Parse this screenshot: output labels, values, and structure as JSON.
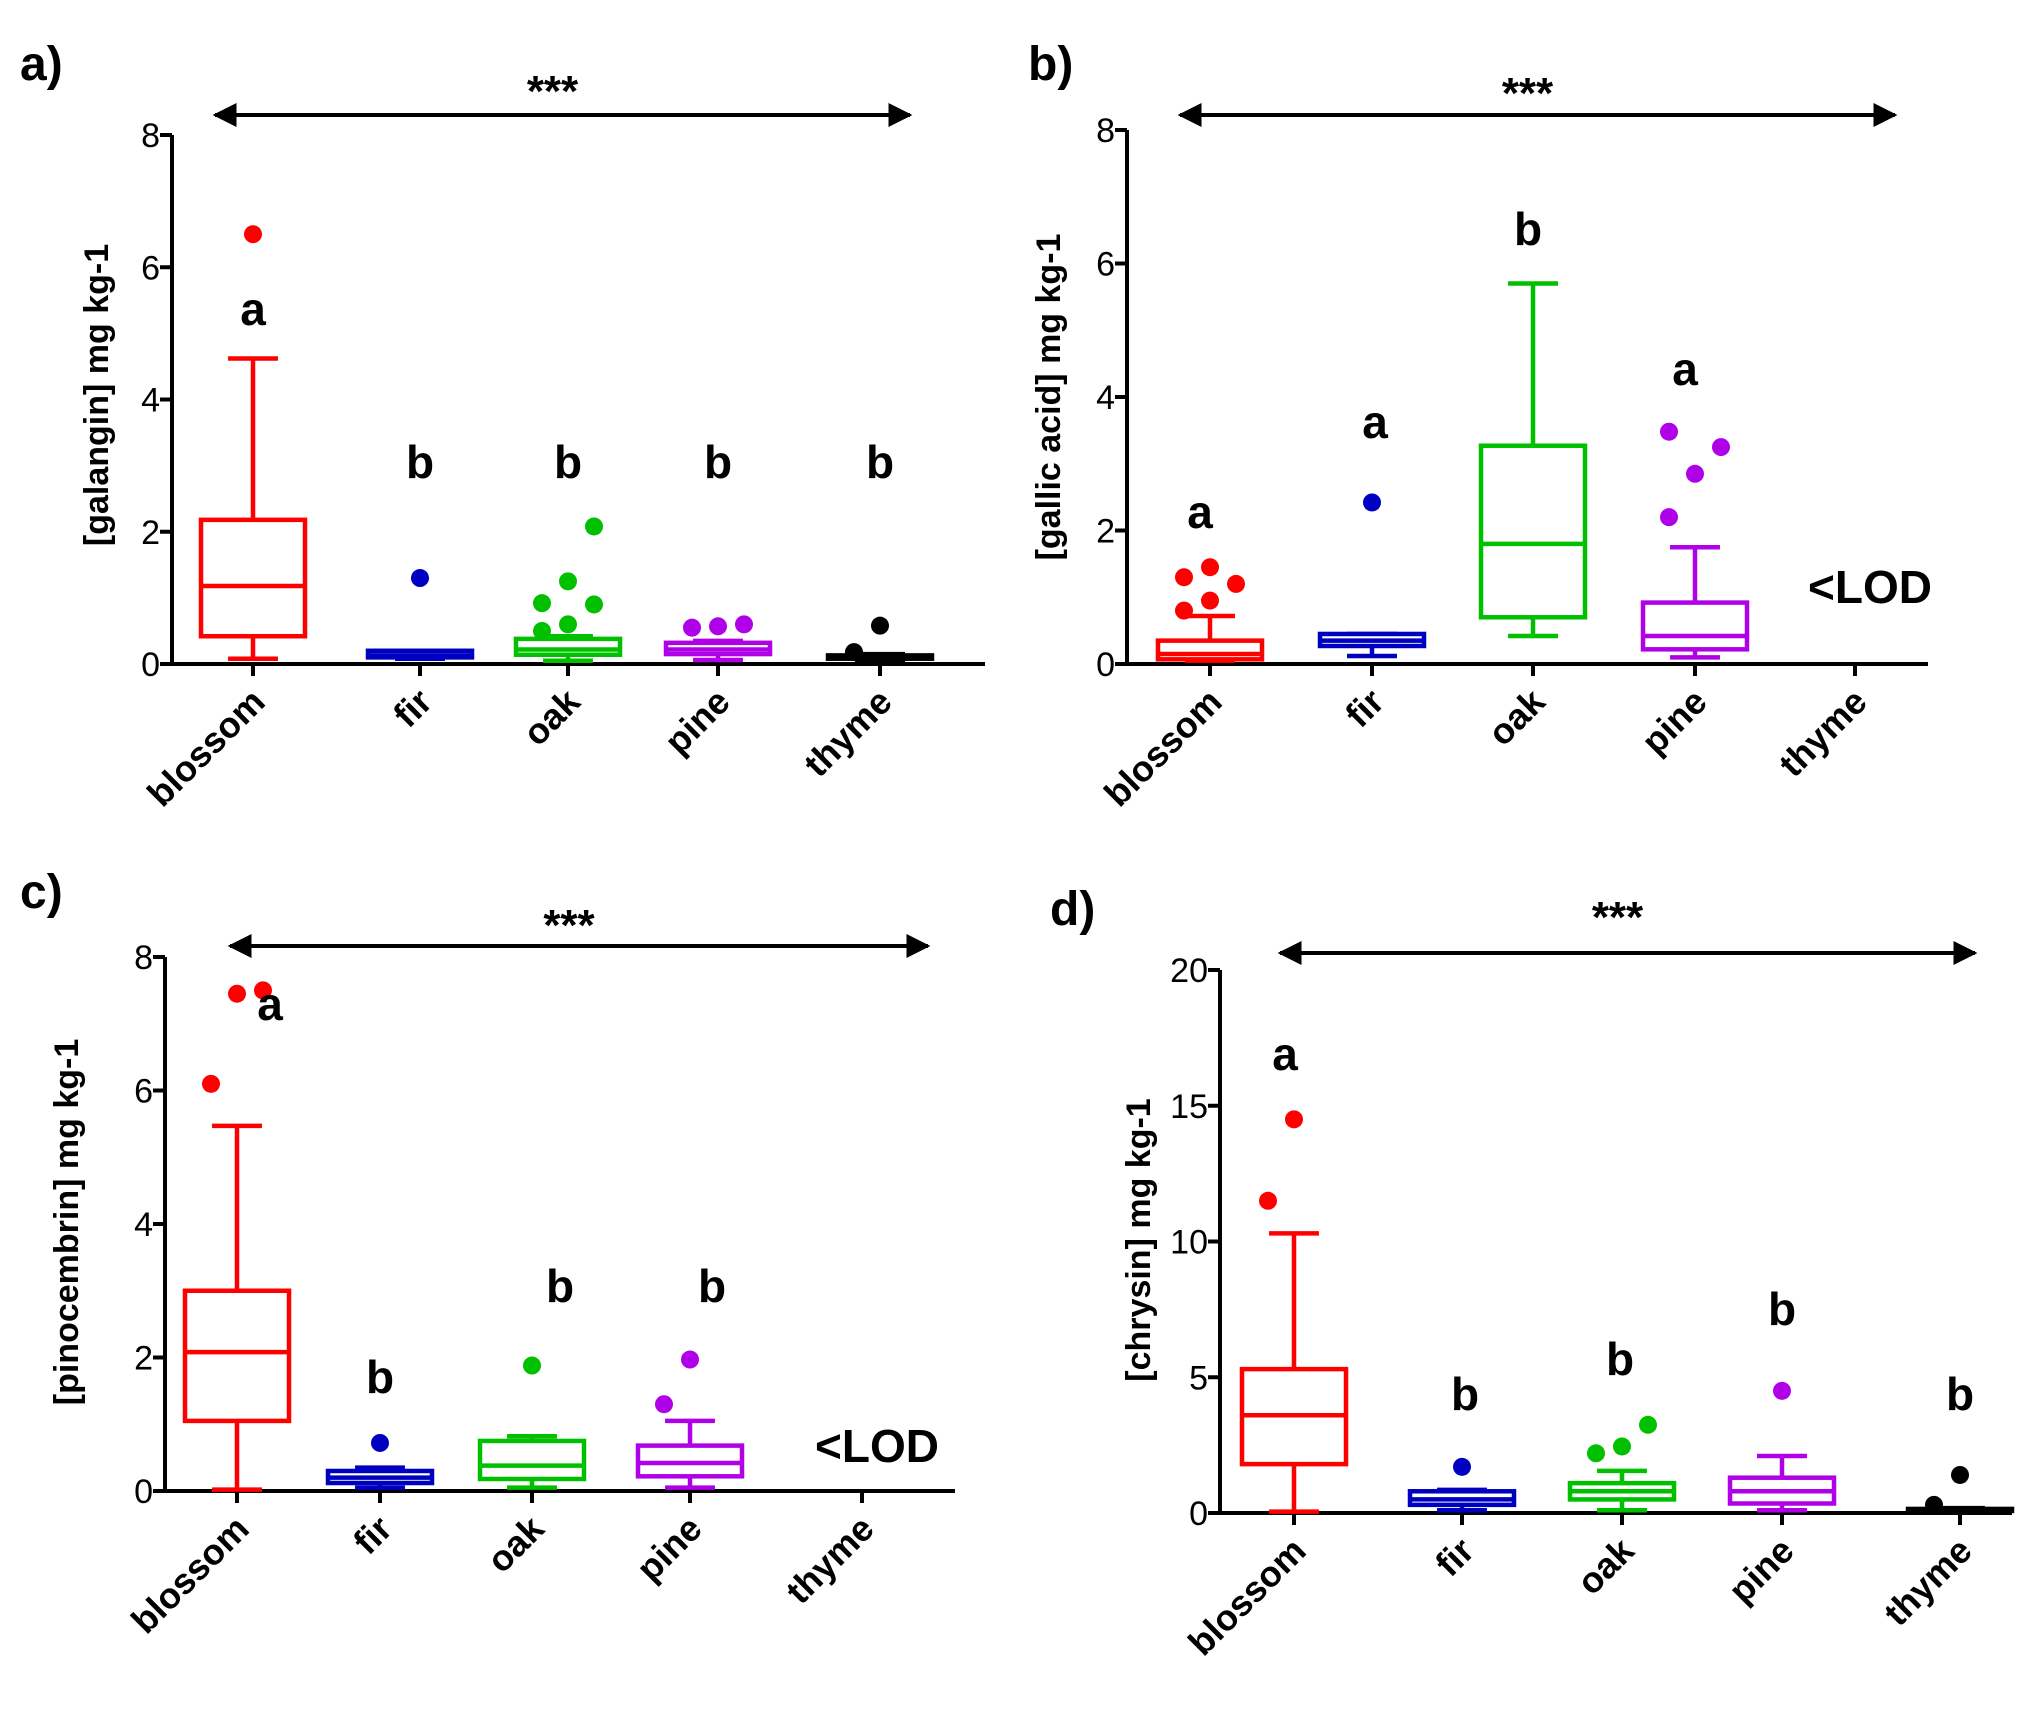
{
  "chart_data": [
    {
      "type": "box",
      "panel_label": "a)",
      "ylabel": "[galangin] mg kg-1",
      "ylim": [
        0,
        8
      ],
      "yticks": [
        0,
        2,
        4,
        6,
        8
      ],
      "categories": [
        "blossom",
        "fir",
        "oak",
        "pine",
        "thyme"
      ],
      "significance": "***",
      "boxes": [
        {
          "category": "blossom",
          "color": "#ff0000",
          "whisker_low": 0.08,
          "q1": 0.42,
          "median": 1.18,
          "q3": 2.18,
          "whisker_high": 4.62,
          "outliers": [
            6.5
          ],
          "letter": "a"
        },
        {
          "category": "fir",
          "color": "#0000c0",
          "whisker_low": 0.08,
          "q1": 0.1,
          "median": 0.13,
          "q3": 0.2,
          "whisker_high": 0.2,
          "outliers": [
            1.3
          ],
          "letter": "b"
        },
        {
          "category": "oak",
          "color": "#00c000",
          "whisker_low": 0.05,
          "q1": 0.14,
          "median": 0.22,
          "q3": 0.38,
          "whisker_high": 0.42,
          "outliers": [
            0.5,
            0.6,
            0.9,
            0.92,
            1.25,
            2.08
          ],
          "letter": "b"
        },
        {
          "category": "pine",
          "color": "#b000e8",
          "whisker_low": 0.06,
          "q1": 0.15,
          "median": 0.22,
          "q3": 0.32,
          "whisker_high": 0.35,
          "outliers": [
            0.55,
            0.57,
            0.6
          ],
          "letter": "b"
        },
        {
          "category": "thyme",
          "color": "#000000",
          "whisker_low": 0.05,
          "q1": 0.08,
          "median": 0.1,
          "q3": 0.13,
          "whisker_high": 0.15,
          "outliers": [
            0.18,
            0.58
          ],
          "letter": "b"
        }
      ]
    },
    {
      "type": "box",
      "panel_label": "b)",
      "ylabel": "[gallic acid] mg kg-1",
      "ylim": [
        0,
        8
      ],
      "yticks": [
        0,
        2,
        4,
        6,
        8
      ],
      "categories": [
        "blossom",
        "fir",
        "oak",
        "pine",
        "thyme"
      ],
      "significance": "***",
      "lod_note": "<LOD",
      "boxes": [
        {
          "category": "blossom",
          "color": "#ff0000",
          "whisker_low": 0.05,
          "q1": 0.07,
          "median": 0.15,
          "q3": 0.35,
          "whisker_high": 0.72,
          "outliers": [
            0.8,
            0.95,
            1.2,
            1.3,
            1.45
          ],
          "letter": "a"
        },
        {
          "category": "fir",
          "color": "#0000c0",
          "whisker_low": 0.12,
          "q1": 0.27,
          "median": 0.35,
          "q3": 0.45,
          "whisker_high": 0.45,
          "outliers": [
            2.42
          ],
          "letter": "a"
        },
        {
          "category": "oak",
          "color": "#00c000",
          "whisker_low": 0.42,
          "q1": 0.7,
          "median": 1.8,
          "q3": 3.27,
          "whisker_high": 5.7,
          "outliers": [],
          "letter": "b"
        },
        {
          "category": "pine",
          "color": "#b000e8",
          "whisker_low": 0.1,
          "q1": 0.22,
          "median": 0.42,
          "q3": 0.92,
          "whisker_high": 1.75,
          "outliers": [
            2.2,
            2.85,
            3.25,
            3.48
          ],
          "letter": "a"
        }
      ]
    },
    {
      "type": "box",
      "panel_label": "c)",
      "ylabel": "[pinocembrin] mg kg-1",
      "ylim": [
        0,
        8
      ],
      "yticks": [
        0,
        2,
        4,
        6,
        8
      ],
      "categories": [
        "blossom",
        "fir",
        "oak",
        "pine",
        "thyme"
      ],
      "significance": "***",
      "lod_note": "<LOD",
      "boxes": [
        {
          "category": "blossom",
          "color": "#ff0000",
          "whisker_low": 0.02,
          "q1": 1.05,
          "median": 2.08,
          "q3": 3.0,
          "whisker_high": 5.47,
          "outliers": [
            6.1,
            7.45,
            7.5
          ],
          "letter": "a"
        },
        {
          "category": "fir",
          "color": "#0000c0",
          "whisker_low": 0.05,
          "q1": 0.12,
          "median": 0.2,
          "q3": 0.3,
          "whisker_high": 0.35,
          "outliers": [
            0.72
          ],
          "letter": "b"
        },
        {
          "category": "oak",
          "color": "#00c000",
          "whisker_low": 0.05,
          "q1": 0.18,
          "median": 0.38,
          "q3": 0.75,
          "whisker_high": 0.82,
          "outliers": [
            1.88
          ],
          "letter": "b"
        },
        {
          "category": "pine",
          "color": "#b000e8",
          "whisker_low": 0.05,
          "q1": 0.22,
          "median": 0.42,
          "q3": 0.68,
          "whisker_high": 1.05,
          "outliers": [
            1.3,
            1.97
          ],
          "letter": "b"
        }
      ]
    },
    {
      "type": "box",
      "panel_label": "d)",
      "ylabel": "[chrysin] mg kg-1",
      "ylim": [
        0,
        20
      ],
      "yticks": [
        0,
        5,
        10,
        15,
        20
      ],
      "categories": [
        "blossom",
        "fir",
        "oak",
        "pine",
        "thyme"
      ],
      "significance": "***",
      "boxes": [
        {
          "category": "blossom",
          "color": "#ff0000",
          "whisker_low": 0.05,
          "q1": 1.8,
          "median": 3.6,
          "q3": 5.3,
          "whisker_high": 10.3,
          "outliers": [
            11.5,
            14.5
          ],
          "letter": "a"
        },
        {
          "category": "fir",
          "color": "#0000c0",
          "whisker_low": 0.1,
          "q1": 0.3,
          "median": 0.5,
          "q3": 0.8,
          "whisker_high": 0.85,
          "outliers": [
            1.7
          ],
          "letter": "b"
        },
        {
          "category": "oak",
          "color": "#00c000",
          "whisker_low": 0.1,
          "q1": 0.5,
          "median": 0.8,
          "q3": 1.1,
          "whisker_high": 1.55,
          "outliers": [
            2.2,
            2.45,
            3.25
          ],
          "letter": "b"
        },
        {
          "category": "pine",
          "color": "#b000e8",
          "whisker_low": 0.1,
          "q1": 0.35,
          "median": 0.8,
          "q3": 1.3,
          "whisker_high": 2.1,
          "outliers": [
            4.5
          ],
          "letter": "b"
        },
        {
          "category": "thyme",
          "color": "#000000",
          "whisker_low": 0.05,
          "q1": 0.08,
          "median": 0.12,
          "q3": 0.15,
          "whisker_high": 0.18,
          "outliers": [
            0.3,
            1.4
          ],
          "letter": "b"
        }
      ]
    }
  ]
}
